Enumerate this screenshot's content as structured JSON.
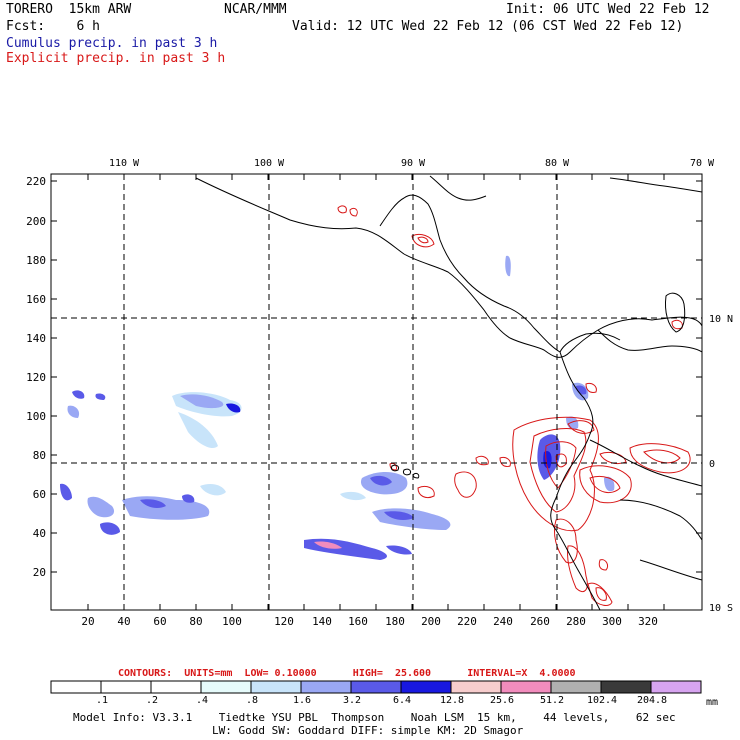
{
  "header": {
    "model": "TORERO  15km ARW",
    "org": "NCAR/MMM",
    "init": "Init: 06 UTC Wed 22 Feb 12",
    "fcst": "Fcst:    6 h",
    "valid": "Valid: 12 UTC Wed 22 Feb 12 (06 CST Wed 22 Feb 12)",
    "cumulus_label": "Cumulus precip. in past 3 h",
    "explicit_label": "Explicit precip. in past 3 h",
    "cumulus_color": "#1a1aa6",
    "explicit_color": "#d81818"
  },
  "map": {
    "lon_labels": [
      "110 W",
      "100 W",
      "90 W",
      "80 W",
      "70 W"
    ],
    "lat_labels": [
      "10 N",
      "0",
      "10 S"
    ],
    "y_grid_labels": [
      "220",
      "200",
      "180",
      "160",
      "140",
      "120",
      "100",
      "80",
      "60",
      "40",
      "20"
    ],
    "x_grid_labels": [
      "20",
      "40",
      "60",
      "80",
      "100",
      "120",
      "140",
      "160",
      "180",
      "200",
      "220",
      "240",
      "260",
      "280",
      "300",
      "320"
    ]
  },
  "contours_info": {
    "text": "CONTOURS:  UNITS=mm  LOW= 0.10000      HIGH=  25.600      INTERVAL=X  4.0000"
  },
  "legend": {
    "labels": [
      ".1",
      ".2",
      ".4",
      ".8",
      "1.6",
      "3.2",
      "6.4",
      "12.8",
      "25.6",
      "51.2",
      "102.4",
      "204.8"
    ],
    "colors": [
      "#ffffff",
      "#ffffff",
      "#ffffff",
      "#e6fbfb",
      "#c8e4fa",
      "#9aa8f4",
      "#5a5ae8",
      "#1818e0",
      "#f7cdcd",
      "#f28cbd",
      "#b0b0b0",
      "#3a3a3a",
      "#d7a4f0"
    ],
    "unit": "mm"
  },
  "footer": {
    "line1": "Model Info: V3.3.1    Tiedtke YSU PBL  Thompson    Noah LSM  15 km,    44 levels,    62 sec",
    "line2": "LW: Godd SW: Goddard DIFF: simple KM: 2D Smagor"
  }
}
